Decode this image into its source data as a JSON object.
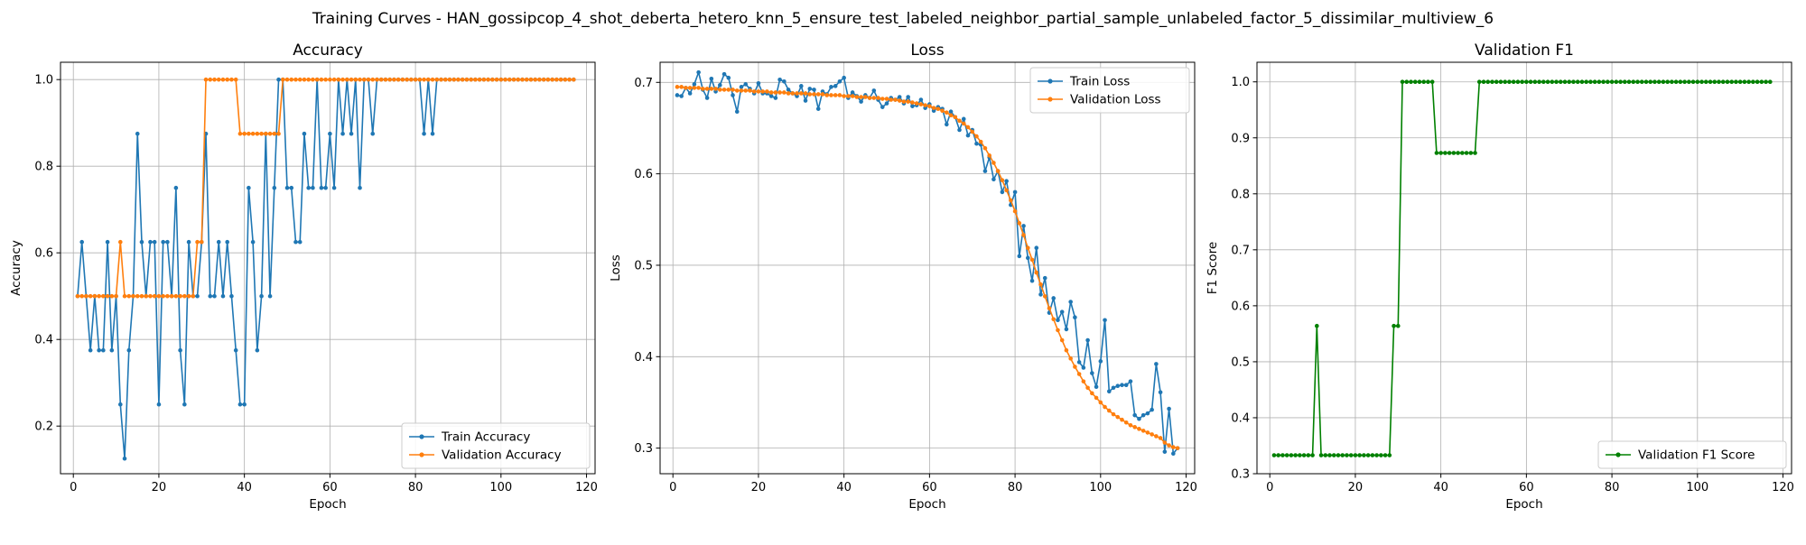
{
  "figure": {
    "suptitle": "Training Curves - HAN_gossipcop_4_shot_deberta_hetero_knn_5_ensure_test_labeled_neighbor_partial_sample_unlabeled_factor_5_dissimilar_multiview_6"
  },
  "chart_data": [
    {
      "type": "line",
      "id": "accuracy",
      "title": "Accuracy",
      "xlabel": "Epoch",
      "ylabel": "Accuracy",
      "xlim": [
        -3,
        122
      ],
      "ylim": [
        0.09,
        1.04
      ],
      "xticks": [
        0,
        20,
        40,
        60,
        80,
        100,
        120
      ],
      "yticks": [
        0.2,
        0.4,
        0.6,
        0.8,
        1.0
      ],
      "ytick_labels": [
        "0.2",
        "0.4",
        "0.6",
        "0.8",
        "1.0"
      ],
      "grid": true,
      "legend_position": "lower-right",
      "series": [
        {
          "name": "Train Accuracy",
          "color": "#1f77b4",
          "x_start": 1,
          "values": [
            0.5,
            0.625,
            0.5,
            0.375,
            0.5,
            0.375,
            0.375,
            0.625,
            0.375,
            0.5,
            0.25,
            0.125,
            0.375,
            0.5,
            0.875,
            0.625,
            0.5,
            0.625,
            0.625,
            0.25,
            0.625,
            0.625,
            0.5,
            0.75,
            0.375,
            0.25,
            0.625,
            0.5,
            0.5,
            0.625,
            0.875,
            0.5,
            0.5,
            0.625,
            0.5,
            0.625,
            0.5,
            0.375,
            0.25,
            0.25,
            0.75,
            0.625,
            0.375,
            0.5,
            0.875,
            0.5,
            0.75,
            1.0,
            1.0,
            0.75,
            0.75,
            0.625,
            0.625,
            0.875,
            0.75,
            0.75,
            1.0,
            0.75,
            0.75,
            0.875,
            0.75,
            1.0,
            0.875,
            1.0,
            0.875,
            1.0,
            0.75,
            1.0,
            1.0,
            0.875,
            1.0,
            1.0,
            1.0,
            1.0,
            1.0,
            1.0,
            1.0,
            1.0,
            1.0,
            1.0,
            1.0,
            0.875,
            1.0,
            0.875,
            1.0,
            1.0,
            1.0,
            1.0,
            1.0,
            1.0,
            1.0,
            1.0,
            1.0,
            1.0,
            1.0,
            1.0,
            1.0,
            1.0,
            1.0,
            1.0,
            1.0,
            1.0,
            1.0,
            1.0,
            1.0,
            1.0,
            1.0,
            1.0,
            1.0,
            1.0,
            1.0,
            1.0,
            1.0,
            1.0,
            1.0,
            1.0,
            1.0
          ]
        },
        {
          "name": "Validation Accuracy",
          "color": "#ff7f0e",
          "x_start": 1,
          "values": [
            0.5,
            0.5,
            0.5,
            0.5,
            0.5,
            0.5,
            0.5,
            0.5,
            0.5,
            0.5,
            0.625,
            0.5,
            0.5,
            0.5,
            0.5,
            0.5,
            0.5,
            0.5,
            0.5,
            0.5,
            0.5,
            0.5,
            0.5,
            0.5,
            0.5,
            0.5,
            0.5,
            0.5,
            0.625,
            0.625,
            1.0,
            1.0,
            1.0,
            1.0,
            1.0,
            1.0,
            1.0,
            1.0,
            0.875,
            0.875,
            0.875,
            0.875,
            0.875,
            0.875,
            0.875,
            0.875,
            0.875,
            0.875,
            1.0,
            1.0,
            1.0,
            1.0,
            1.0,
            1.0,
            1.0,
            1.0,
            1.0,
            1.0,
            1.0,
            1.0,
            1.0,
            1.0,
            1.0,
            1.0,
            1.0,
            1.0,
            1.0,
            1.0,
            1.0,
            1.0,
            1.0,
            1.0,
            1.0,
            1.0,
            1.0,
            1.0,
            1.0,
            1.0,
            1.0,
            1.0,
            1.0,
            1.0,
            1.0,
            1.0,
            1.0,
            1.0,
            1.0,
            1.0,
            1.0,
            1.0,
            1.0,
            1.0,
            1.0,
            1.0,
            1.0,
            1.0,
            1.0,
            1.0,
            1.0,
            1.0,
            1.0,
            1.0,
            1.0,
            1.0,
            1.0,
            1.0,
            1.0,
            1.0,
            1.0,
            1.0,
            1.0,
            1.0,
            1.0,
            1.0,
            1.0,
            1.0,
            1.0
          ]
        }
      ]
    },
    {
      "type": "line",
      "id": "loss",
      "title": "Loss",
      "xlabel": "Epoch",
      "ylabel": "Loss",
      "xlim": [
        -3,
        122
      ],
      "ylim": [
        0.272,
        0.722
      ],
      "xticks": [
        0,
        20,
        40,
        60,
        80,
        100,
        120
      ],
      "yticks": [
        0.3,
        0.4,
        0.5,
        0.6,
        0.7
      ],
      "ytick_labels": [
        "0.3",
        "0.4",
        "0.5",
        "0.6",
        "0.7"
      ],
      "grid": true,
      "legend_position": "top-right",
      "series": [
        {
          "name": "Train Loss",
          "color": "#1f77b4",
          "x_start": 1,
          "values": [
            0.686,
            0.685,
            0.694,
            0.688,
            0.698,
            0.711,
            0.692,
            0.683,
            0.704,
            0.69,
            0.697,
            0.709,
            0.705,
            0.686,
            0.668,
            0.695,
            0.698,
            0.693,
            0.688,
            0.699,
            0.688,
            0.688,
            0.685,
            0.683,
            0.703,
            0.701,
            0.692,
            0.688,
            0.685,
            0.696,
            0.68,
            0.693,
            0.692,
            0.671,
            0.69,
            0.687,
            0.695,
            0.696,
            0.701,
            0.705,
            0.683,
            0.689,
            0.685,
            0.679,
            0.686,
            0.683,
            0.691,
            0.681,
            0.673,
            0.677,
            0.683,
            0.681,
            0.684,
            0.677,
            0.684,
            0.674,
            0.675,
            0.681,
            0.672,
            0.676,
            0.669,
            0.673,
            0.671,
            0.654,
            0.668,
            0.662,
            0.648,
            0.66,
            0.642,
            0.648,
            0.633,
            0.632,
            0.603,
            0.618,
            0.594,
            0.603,
            0.58,
            0.592,
            0.566,
            0.58,
            0.51,
            0.543,
            0.508,
            0.483,
            0.519,
            0.468,
            0.486,
            0.448,
            0.464,
            0.44,
            0.449,
            0.43,
            0.46,
            0.443,
            0.394,
            0.388,
            0.418,
            0.382,
            0.367,
            0.395,
            0.44,
            0.362,
            0.366,
            0.368,
            0.369,
            0.369,
            0.373,
            0.336,
            0.332,
            0.336,
            0.338,
            0.342,
            0.392,
            0.361,
            0.296,
            0.343,
            0.294,
            0.3
          ]
        },
        {
          "name": "Validation Loss",
          "color": "#ff7f0e",
          "x_start": 1,
          "values": [
            0.695,
            0.695,
            0.694,
            0.694,
            0.694,
            0.694,
            0.693,
            0.693,
            0.693,
            0.693,
            0.692,
            0.692,
            0.692,
            0.692,
            0.691,
            0.691,
            0.691,
            0.691,
            0.69,
            0.69,
            0.69,
            0.69,
            0.689,
            0.689,
            0.689,
            0.689,
            0.688,
            0.688,
            0.688,
            0.688,
            0.688,
            0.687,
            0.687,
            0.687,
            0.687,
            0.686,
            0.686,
            0.686,
            0.686,
            0.685,
            0.685,
            0.685,
            0.684,
            0.684,
            0.684,
            0.683,
            0.683,
            0.683,
            0.682,
            0.682,
            0.681,
            0.681,
            0.68,
            0.679,
            0.679,
            0.678,
            0.677,
            0.676,
            0.675,
            0.674,
            0.672,
            0.671,
            0.669,
            0.667,
            0.664,
            0.662,
            0.658,
            0.655,
            0.651,
            0.646,
            0.641,
            0.635,
            0.628,
            0.62,
            0.612,
            0.603,
            0.593,
            0.582,
            0.571,
            0.559,
            0.546,
            0.533,
            0.519,
            0.506,
            0.492,
            0.479,
            0.466,
            0.453,
            0.441,
            0.429,
            0.418,
            0.407,
            0.398,
            0.389,
            0.381,
            0.373,
            0.366,
            0.36,
            0.355,
            0.35,
            0.345,
            0.341,
            0.337,
            0.334,
            0.331,
            0.328,
            0.325,
            0.323,
            0.321,
            0.319,
            0.317,
            0.315,
            0.313,
            0.311,
            0.306,
            0.303,
            0.301,
            0.3
          ]
        }
      ]
    },
    {
      "type": "line",
      "id": "f1",
      "title": "Validation F1",
      "xlabel": "Epoch",
      "ylabel": "F1 Score",
      "xlim": [
        -3,
        122
      ],
      "ylim": [
        0.3,
        1.035
      ],
      "xticks": [
        0,
        20,
        40,
        60,
        80,
        100,
        120
      ],
      "yticks": [
        0.3,
        0.4,
        0.5,
        0.6,
        0.7,
        0.8,
        0.9,
        1.0
      ],
      "ytick_labels": [
        "0.3",
        "0.4",
        "0.5",
        "0.6",
        "0.7",
        "0.8",
        "0.9",
        "1.0"
      ],
      "grid": true,
      "legend_position": "lower-right",
      "series": [
        {
          "name": "Validation F1 Score",
          "color": "#008000",
          "x_start": 1,
          "values": [
            0.333,
            0.333,
            0.333,
            0.333,
            0.333,
            0.333,
            0.333,
            0.333,
            0.333,
            0.333,
            0.564,
            0.333,
            0.333,
            0.333,
            0.333,
            0.333,
            0.333,
            0.333,
            0.333,
            0.333,
            0.333,
            0.333,
            0.333,
            0.333,
            0.333,
            0.333,
            0.333,
            0.333,
            0.564,
            0.564,
            1.0,
            1.0,
            1.0,
            1.0,
            1.0,
            1.0,
            1.0,
            1.0,
            0.873,
            0.873,
            0.873,
            0.873,
            0.873,
            0.873,
            0.873,
            0.873,
            0.873,
            0.873,
            1.0,
            1.0,
            1.0,
            1.0,
            1.0,
            1.0,
            1.0,
            1.0,
            1.0,
            1.0,
            1.0,
            1.0,
            1.0,
            1.0,
            1.0,
            1.0,
            1.0,
            1.0,
            1.0,
            1.0,
            1.0,
            1.0,
            1.0,
            1.0,
            1.0,
            1.0,
            1.0,
            1.0,
            1.0,
            1.0,
            1.0,
            1.0,
            1.0,
            1.0,
            1.0,
            1.0,
            1.0,
            1.0,
            1.0,
            1.0,
            1.0,
            1.0,
            1.0,
            1.0,
            1.0,
            1.0,
            1.0,
            1.0,
            1.0,
            1.0,
            1.0,
            1.0,
            1.0,
            1.0,
            1.0,
            1.0,
            1.0,
            1.0,
            1.0,
            1.0,
            1.0,
            1.0,
            1.0,
            1.0,
            1.0,
            1.0,
            1.0,
            1.0,
            1.0
          ]
        }
      ]
    }
  ]
}
